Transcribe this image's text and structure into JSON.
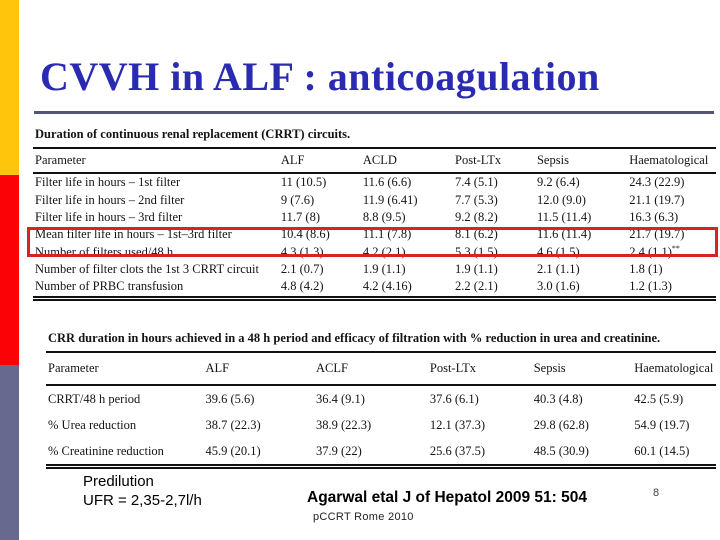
{
  "slide": {
    "title": "CVVH in ALF : anticoagulation",
    "page_number": "8",
    "footer_note_line1": "Predilution",
    "footer_note_line2": "UFR = 2,35-2,7l/h",
    "citation": "Agarwal etal J of Hepatol 2009 51: 504",
    "conference": "pCCRT Rome 2010"
  },
  "colors": {
    "title_blue": "#2b2bb2",
    "underline_slate": "#55557a",
    "sidebar_yellow": "#ffc40c",
    "sidebar_red": "#fb0207",
    "sidebar_slate": "#68698f",
    "highlight_red": "#d8231e"
  },
  "tables": [
    {
      "caption": "Duration of continuous renal replacement (CRRT) circuits.",
      "columns": [
        "Parameter",
        "ALF",
        "ACLD",
        "Post-LTx",
        "Sepsis",
        "Haematological"
      ],
      "rows": [
        [
          "Filter life in hours – 1st filter",
          "11 (10.5)",
          "11.6 (6.6)",
          "7.4 (5.1)",
          "9.2 (6.4)",
          "24.3 (22.9)"
        ],
        [
          "Filter life in hours – 2nd filter",
          "9 (7.6)",
          "11.9 (6.41)",
          "7.7 (5.3)",
          "12.0 (9.0)",
          "21.1 (19.7)"
        ],
        [
          "Filter life in hours – 3rd filter",
          "11.7 (8)",
          "8.8 (9.5)",
          "9.2 (8.2)",
          "11.5 (11.4)",
          "16.3 (6.3)"
        ],
        [
          "Mean filter life in hours – 1st–3rd filter",
          "10.4 (8.6)",
          "11.1 (7.8)",
          "8.1 (6.2)",
          "11.6 (11.4)",
          "21.7 (19.7)^*"
        ],
        [
          "Number of filters used/48 h",
          "4.3 (1.3)",
          "4.2 (2.1)",
          "5.3 (1.5)",
          "4.6 (1.5)",
          "2.4 (1.1)^**"
        ],
        [
          "Number of filter clots the 1st 3 CRRT circuit",
          "2.1 (0.7)",
          "1.9 (1.1)",
          "1.9 (1.1)",
          "2.1 (1.1)",
          "1.8 (1)"
        ],
        [
          "Number of PRBC transfusion",
          "4.8 (4.2)",
          "4.2 (4.16)",
          "2.2 (2.1)",
          "3.0 (1.6)",
          "1.2 (1.3)"
        ]
      ],
      "highlighted_row": 3
    },
    {
      "caption": "CRR duration in hours achieved in a 48 h period and efficacy of filtration with % reduction in urea and creatinine.",
      "columns": [
        "Parameter",
        "ALF",
        "ACLF",
        "Post-LTx",
        "Sepsis",
        "Haematological"
      ],
      "rows": [
        [
          "CRRT/48 h period",
          "39.6 (5.6)",
          "36.4 (9.1)",
          "37.6 (6.1)",
          "40.3 (4.8)",
          "42.5 (5.9)"
        ],
        [
          "% Urea reduction",
          "38.7 (22.3)",
          "38.9 (22.3)",
          "12.1 (37.3)",
          "29.8 (62.8)",
          "54.9 (19.7)"
        ],
        [
          "% Creatinine reduction",
          "45.9 (20.1)",
          "37.9 (22)",
          "25.6 (37.5)",
          "48.5 (30.9)",
          "60.1 (14.5)"
        ]
      ],
      "highlighted_row": -1
    }
  ]
}
